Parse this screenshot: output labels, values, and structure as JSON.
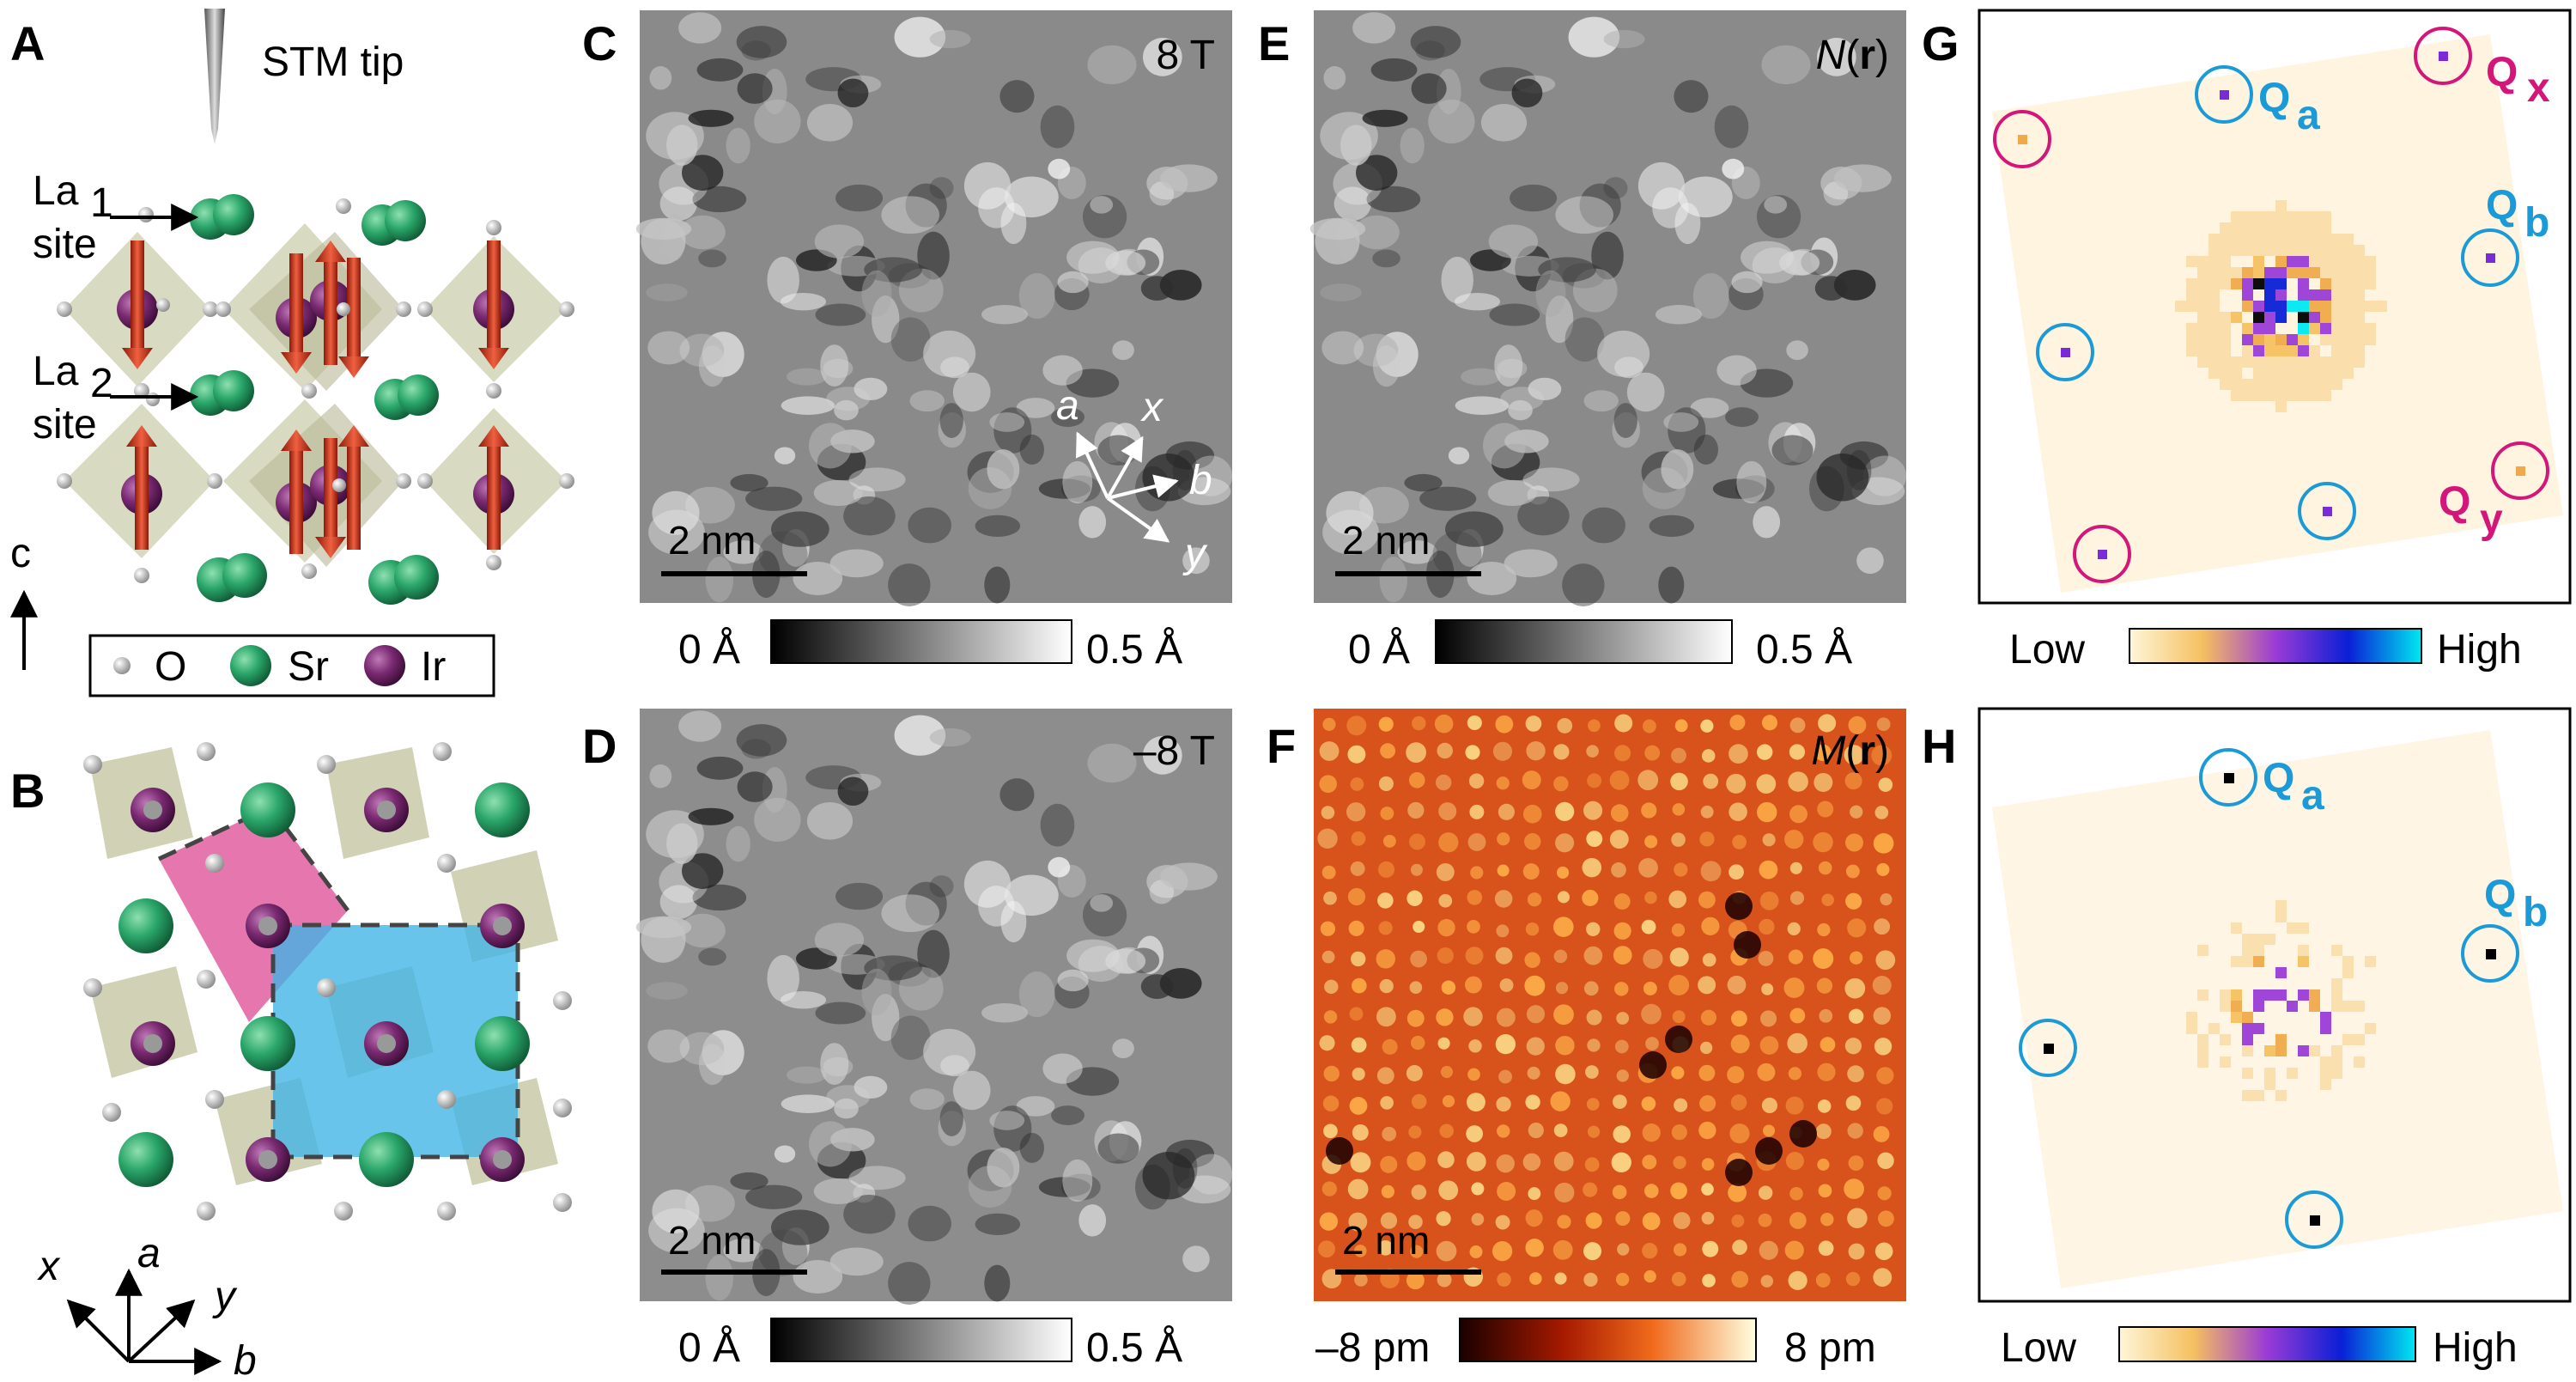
{
  "panels": {
    "A": {
      "label": "A",
      "stm_tip": "STM tip",
      "la1": "La",
      "la1_sub": "1",
      "la1_site": "site",
      "la2": "La",
      "la2_sub": "2",
      "la2_site": "site",
      "c_axis": "c",
      "legend": {
        "o": "O",
        "sr": "Sr",
        "ir": "Ir"
      }
    },
    "B": {
      "label": "B",
      "axes": {
        "x": "x",
        "a": "a",
        "y": "y",
        "b": "b"
      }
    },
    "C": {
      "label": "C",
      "field": "8 T",
      "scalebar": "2 nm",
      "axes": {
        "a": "a",
        "x": "x",
        "b": "b",
        "y": "y"
      },
      "colorbar": {
        "min": "0 Å",
        "max": "0.5 Å"
      }
    },
    "D": {
      "label": "D",
      "field": "–8 T",
      "scalebar": "2 nm",
      "colorbar": {
        "min": "0 Å",
        "max": "0.5 Å"
      }
    },
    "E": {
      "label": "E",
      "title_main": "N",
      "title_arg": "r",
      "scalebar": "2 nm",
      "colorbar": {
        "min": "0 Å",
        "max": "0.5 Å"
      }
    },
    "F": {
      "label": "F",
      "title_main": "M",
      "title_arg": "r",
      "scalebar": "2 nm",
      "colorbar": {
        "min": "–8 pm",
        "max": "8 pm"
      }
    },
    "G": {
      "label": "G",
      "peaks": {
        "qa": "Q",
        "qa_sub": "a",
        "qb": "Q",
        "qb_sub": "b",
        "qx": "Q",
        "qx_sub": "x",
        "qy": "Q",
        "qy_sub": "y"
      },
      "colorbar": {
        "min": "Low",
        "max": "High"
      }
    },
    "H": {
      "label": "H",
      "peaks": {
        "qa": "Q",
        "qa_sub": "a",
        "qb": "Q",
        "qb_sub": "b"
      },
      "colorbar": {
        "min": "Low",
        "max": "High"
      }
    }
  },
  "colors": {
    "sr": "#2aa66a",
    "ir": "#7a2a72",
    "oxygen": "#bdbdbd",
    "octahedron": "#c9caa8",
    "spin": "#d23a22",
    "cyan_cell": "#3fb4e6",
    "magenta_cell": "#e0559a",
    "label_cyan": "#1a9ad6",
    "label_magenta": "#d4157a"
  }
}
